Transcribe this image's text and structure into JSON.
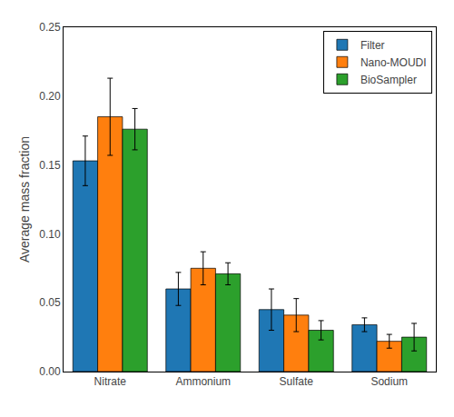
{
  "chart_data": {
    "type": "bar",
    "categories": [
      "Nitrate",
      "Ammonium",
      "Sulfate",
      "Sodium"
    ],
    "series": [
      {
        "name": "Filter",
        "values": [
          0.153,
          0.06,
          0.045,
          0.034
        ],
        "errors": [
          0.018,
          0.012,
          0.015,
          0.005
        ]
      },
      {
        "name": "Nano-MOUDI",
        "values": [
          0.185,
          0.075,
          0.041,
          0.022
        ],
        "errors": [
          0.028,
          0.012,
          0.012,
          0.005
        ]
      },
      {
        "name": "BioSampler",
        "values": [
          0.176,
          0.071,
          0.03,
          0.025
        ],
        "errors": [
          0.015,
          0.008,
          0.007,
          0.01
        ]
      }
    ],
    "ylabel": "Average mass fraction",
    "ylim": [
      0,
      0.25
    ],
    "yticks": [
      {
        "value": 0,
        "label": "0.00"
      },
      0.05,
      {
        "value": 0.1,
        "label": "0.10"
      },
      0.15,
      {
        "value": 0.2,
        "label": "0.20"
      },
      0.25
    ],
    "grid": false,
    "legend": "upper right"
  }
}
